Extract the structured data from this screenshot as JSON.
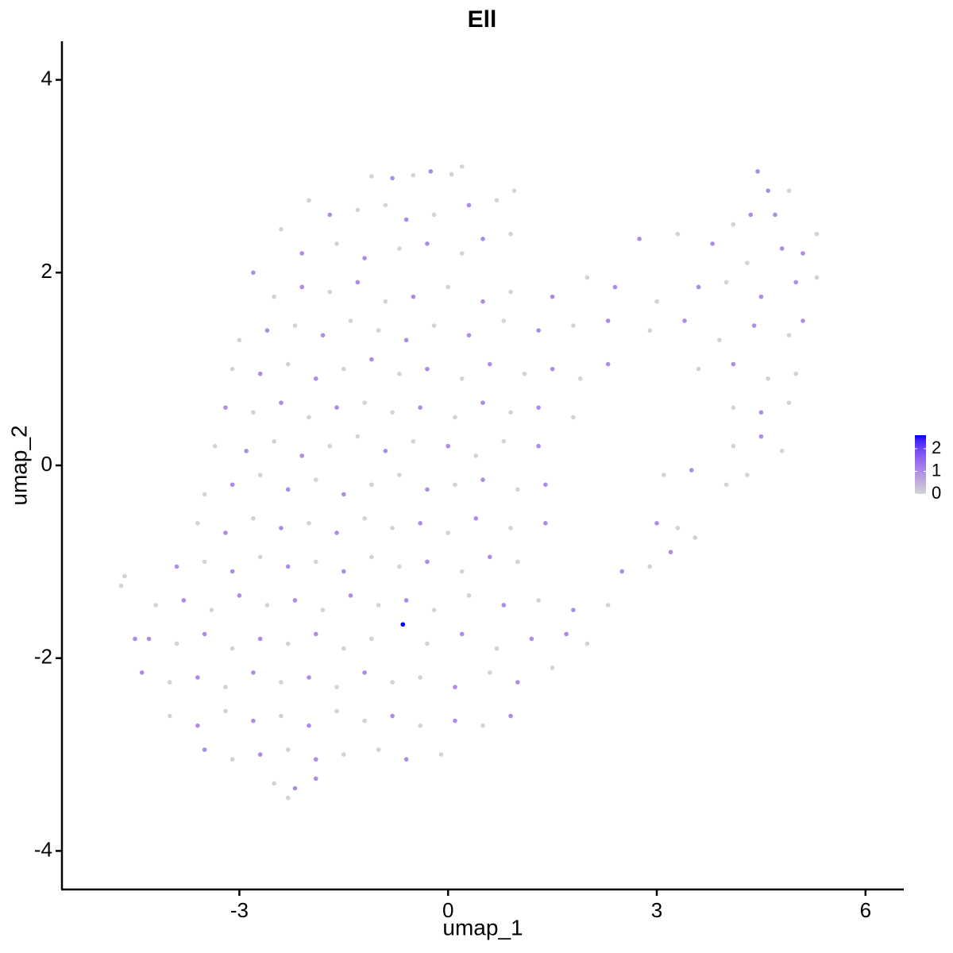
{
  "chart_data": {
    "type": "scatter",
    "title": "Ell",
    "x_label": "umap_1",
    "y_label": "umap_2",
    "xlim": [
      -5.55,
      6.55
    ],
    "ylim": [
      -4.4,
      4.4
    ],
    "xticks": [
      -3,
      0,
      3,
      6
    ],
    "yticks": [
      -4,
      -2,
      0,
      2,
      4
    ],
    "grid": false,
    "low_color": "#d3d3d3",
    "high_color": "#0000ff",
    "color_lim": [
      0,
      2.6
    ],
    "color_ticks": [
      0,
      1,
      2
    ],
    "legend_position": "right",
    "x": [
      -1.1,
      -0.8,
      -0.5,
      -0.25,
      0.05,
      0.2,
      4.45,
      4.6,
      -2.0,
      -1.7,
      -1.3,
      -0.9,
      -0.6,
      -0.2,
      0.3,
      0.7,
      0.95,
      4.1,
      4.35,
      4.7,
      4.9,
      -2.4,
      -2.1,
      -1.6,
      -1.2,
      -0.7,
      -0.3,
      0.2,
      0.5,
      0.9,
      2.75,
      3.3,
      3.8,
      4.3,
      4.8,
      5.1,
      5.3,
      -2.8,
      -2.5,
      -2.1,
      -1.7,
      -1.3,
      -0.9,
      -0.5,
      0,
      0.5,
      0.9,
      1.5,
      2.0,
      2.4,
      3.0,
      3.6,
      4.0,
      4.5,
      5.0,
      5.3,
      -3.0,
      -2.6,
      -2.2,
      -1.8,
      -1.4,
      -1.0,
      -0.6,
      -0.2,
      0.3,
      0.8,
      1.3,
      1.8,
      2.3,
      2.9,
      3.4,
      3.9,
      4.4,
      4.9,
      5.1,
      -3.1,
      -2.7,
      -2.3,
      -1.9,
      -1.5,
      -1.1,
      -0.7,
      -0.3,
      0.2,
      0.6,
      1.1,
      1.5,
      1.9,
      2.3,
      3.6,
      4.1,
      4.6,
      5.0,
      -3.2,
      -2.8,
      -2.4,
      -2.0,
      -1.6,
      -1.2,
      -0.8,
      -0.4,
      0.1,
      0.5,
      0.9,
      1.3,
      1.8,
      4.1,
      4.5,
      4.9,
      -3.35,
      -2.9,
      -2.5,
      -2.1,
      -1.7,
      -1.3,
      -0.9,
      -0.5,
      0,
      0.4,
      0.8,
      1.3,
      4.1,
      4.5,
      4.8,
      -3.5,
      -3.1,
      -2.7,
      -2.3,
      -1.9,
      -1.5,
      -1.1,
      -0.7,
      -0.3,
      0.1,
      0.5,
      1.0,
      1.4,
      3.1,
      3.5,
      4.0,
      4.3,
      -3.6,
      -3.2,
      -2.8,
      -2.4,
      -2.0,
      -1.6,
      -1.2,
      -0.8,
      -0.4,
      0.0,
      0.4,
      0.9,
      1.4,
      3.0,
      3.3,
      3.55,
      -3.9,
      -3.5,
      -3.1,
      -2.7,
      -2.3,
      -1.9,
      -1.5,
      -1.1,
      -0.7,
      -0.3,
      0.2,
      0.6,
      1.0,
      2.5,
      2.9,
      3.2,
      -4.2,
      -3.8,
      -3.4,
      -3.0,
      -2.6,
      -2.2,
      -1.8,
      -1.4,
      -1.0,
      -0.6,
      -0.2,
      0.3,
      0.8,
      1.3,
      1.8,
      2.3,
      -4.3,
      -3.9,
      -3.5,
      -3.1,
      -2.7,
      -2.3,
      -1.9,
      -1.5,
      -1.1,
      -0.65,
      -0.3,
      0.2,
      0.7,
      1.2,
      1.7,
      2.0,
      -4.4,
      -4.0,
      -3.6,
      -3.2,
      -2.8,
      -2.4,
      -2.0,
      -1.6,
      -1.2,
      -0.8,
      -0.4,
      0.1,
      0.6,
      1.0,
      1.5,
      -4.0,
      -3.6,
      -3.2,
      -2.8,
      -2.4,
      -2.0,
      -1.6,
      -1.2,
      -0.8,
      -0.4,
      0.1,
      0.5,
      0.9,
      -3.5,
      -3.1,
      -2.7,
      -2.3,
      -1.9,
      -1.5,
      -1.0,
      -0.6,
      -0.1,
      -2.5,
      -2.2,
      -1.9,
      -2.3,
      -4.7,
      -4.65,
      -4.5
    ],
    "y": [
      3.0,
      2.98,
      3.01,
      3.05,
      3.02,
      3.1,
      3.05,
      2.85,
      2.75,
      2.6,
      2.65,
      2.7,
      2.55,
      2.6,
      2.7,
      2.75,
      2.85,
      2.5,
      2.6,
      2.6,
      2.85,
      2.45,
      2.2,
      2.3,
      2.15,
      2.25,
      2.3,
      2.2,
      2.35,
      2.4,
      2.35,
      2.4,
      2.3,
      2.1,
      2.25,
      2.2,
      2.4,
      2.0,
      1.75,
      1.85,
      1.8,
      1.9,
      1.7,
      1.75,
      1.85,
      1.7,
      1.8,
      1.75,
      1.95,
      1.85,
      1.7,
      1.85,
      1.9,
      1.75,
      1.9,
      1.95,
      1.3,
      1.4,
      1.45,
      1.35,
      1.5,
      1.4,
      1.3,
      1.45,
      1.35,
      1.5,
      1.4,
      1.45,
      1.5,
      1.4,
      1.5,
      1.3,
      1.45,
      1.35,
      1.5,
      1.0,
      0.95,
      1.05,
      0.9,
      1.0,
      1.1,
      0.95,
      1.0,
      0.9,
      1.05,
      0.95,
      1.0,
      0.9,
      1.05,
      1.0,
      1.05,
      0.9,
      0.95,
      0.6,
      0.55,
      0.65,
      0.5,
      0.6,
      0.65,
      0.55,
      0.6,
      0.5,
      0.65,
      0.55,
      0.6,
      0.5,
      0.6,
      0.55,
      0.65,
      0.2,
      0.15,
      0.25,
      0.1,
      0.2,
      0.3,
      0.15,
      0.25,
      0.2,
      0.1,
      0.25,
      0.2,
      0.2,
      0.3,
      0.15,
      -0.3,
      -0.2,
      -0.1,
      -0.25,
      -0.15,
      -0.3,
      -0.2,
      -0.1,
      -0.25,
      -0.2,
      -0.15,
      -0.25,
      -0.2,
      -0.1,
      -0.05,
      -0.2,
      -0.1,
      -0.6,
      -0.7,
      -0.55,
      -0.65,
      -0.6,
      -0.7,
      -0.55,
      -0.65,
      -0.6,
      -0.7,
      -0.55,
      -0.65,
      -0.6,
      -0.6,
      -0.65,
      -0.75,
      -1.05,
      -1.0,
      -1.1,
      -0.95,
      -1.05,
      -1.0,
      -1.1,
      -0.95,
      -1.05,
      -1.0,
      -1.1,
      -0.95,
      -1.0,
      -1.1,
      -1.05,
      -0.9,
      -1.45,
      -1.4,
      -1.5,
      -1.35,
      -1.45,
      -1.4,
      -1.5,
      -1.35,
      -1.45,
      -1.4,
      -1.5,
      -1.35,
      -1.45,
      -1.4,
      -1.5,
      -1.45,
      -1.8,
      -1.85,
      -1.75,
      -1.9,
      -1.8,
      -1.85,
      -1.75,
      -1.9,
      -1.8,
      -1.65,
      -1.85,
      -1.75,
      -1.9,
      -1.8,
      -1.75,
      -1.85,
      -2.15,
      -2.25,
      -2.2,
      -2.3,
      -2.15,
      -2.25,
      -2.2,
      -2.3,
      -2.15,
      -2.25,
      -2.2,
      -2.3,
      -2.15,
      -2.25,
      -2.1,
      -2.6,
      -2.7,
      -2.55,
      -2.65,
      -2.6,
      -2.7,
      -2.55,
      -2.65,
      -2.6,
      -2.7,
      -2.65,
      -2.7,
      -2.6,
      -2.95,
      -3.05,
      -3.0,
      -2.95,
      -3.05,
      -3.0,
      -2.95,
      -3.05,
      -3.0,
      -3.3,
      -3.35,
      -3.25,
      -3.45,
      -1.25,
      -1.15,
      -1.8
    ],
    "values": [
      0,
      1,
      0,
      1,
      0,
      0,
      1,
      1,
      0,
      1,
      0,
      0,
      1,
      0,
      1,
      0,
      0,
      0,
      1,
      1,
      0,
      0,
      1,
      0,
      1,
      0,
      1,
      0,
      1,
      0,
      1,
      0,
      1,
      0,
      1,
      1,
      0,
      1,
      0,
      1,
      0,
      1,
      0,
      1,
      0,
      1,
      0,
      1,
      0,
      1,
      0,
      1,
      0,
      1,
      1,
      0,
      0,
      1,
      0,
      1,
      0,
      0,
      1,
      0,
      1,
      0,
      1,
      0,
      1,
      0,
      1,
      0,
      1,
      0,
      1,
      0,
      1,
      0,
      1,
      0,
      1,
      0,
      1,
      0,
      1,
      0,
      1,
      0,
      1,
      0,
      1,
      0,
      0,
      1,
      0,
      1,
      0,
      1,
      0,
      0,
      1,
      0,
      1,
      0,
      1,
      0,
      0,
      1,
      0,
      0,
      1,
      0,
      1,
      0,
      0,
      1,
      0,
      1,
      0,
      0,
      1,
      0,
      1,
      0,
      0,
      1,
      0,
      1,
      0,
      1,
      0,
      0,
      1,
      0,
      1,
      0,
      1,
      0,
      1,
      0,
      0,
      0,
      1,
      0,
      1,
      0,
      1,
      0,
      0,
      1,
      0,
      1,
      0,
      1,
      1,
      0,
      0,
      1,
      0,
      1,
      0,
      1,
      0,
      1,
      0,
      0,
      1,
      0,
      1,
      0,
      1,
      0,
      1,
      0,
      1,
      0,
      1,
      0,
      1,
      0,
      1,
      0,
      1,
      0,
      0,
      1,
      0,
      1,
      0,
      1,
      0,
      1,
      0,
      1,
      0,
      1,
      0,
      0,
      2.6,
      0,
      1,
      0,
      1,
      1,
      0,
      1,
      0,
      1,
      0,
      1,
      0,
      1,
      0,
      1,
      0,
      0,
      1,
      0,
      1,
      0,
      0,
      1,
      0,
      1,
      0,
      1,
      0,
      0,
      1,
      0,
      1,
      0,
      1,
      1,
      0,
      1,
      0,
      1,
      0,
      0,
      1,
      0,
      0,
      1,
      1,
      0,
      0,
      0,
      1
    ]
  }
}
